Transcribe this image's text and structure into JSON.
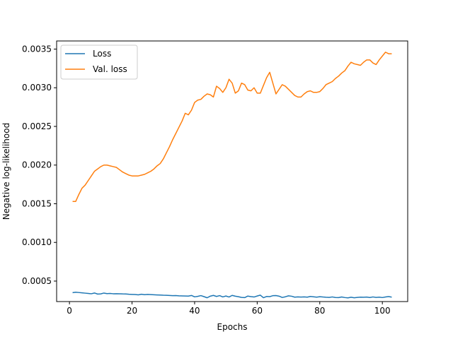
{
  "chart_data": {
    "type": "line",
    "title": "",
    "xlabel": "Epochs",
    "ylabel": "Negative log-likelihood",
    "xlim": [
      -4.1,
      108.1
    ],
    "ylim": [
      0.000235,
      0.003605
    ],
    "xticks": [
      0,
      20,
      40,
      60,
      80,
      100
    ],
    "xtick_labels": [
      "0",
      "20",
      "40",
      "60",
      "80",
      "100"
    ],
    "yticks": [
      0.0005,
      0.001,
      0.0015,
      0.002,
      0.0025,
      0.003,
      0.0035
    ],
    "ytick_labels": [
      "0.0005",
      "0.0010",
      "0.0015",
      "0.0020",
      "0.0025",
      "0.0030",
      "0.0035"
    ],
    "grid": false,
    "legend_position": "top-left",
    "series": [
      {
        "name": "Loss",
        "color": "#1f77b4",
        "x": [
          1,
          2,
          3,
          4,
          5,
          6,
          7,
          8,
          9,
          10,
          11,
          12,
          13,
          14,
          15,
          16,
          17,
          18,
          19,
          20,
          21,
          22,
          23,
          24,
          25,
          26,
          27,
          28,
          29,
          30,
          31,
          32,
          33,
          34,
          35,
          36,
          37,
          38,
          39,
          40,
          41,
          42,
          43,
          44,
          45,
          46,
          47,
          48,
          49,
          50,
          51,
          52,
          53,
          54,
          55,
          56,
          57,
          58,
          59,
          60,
          61,
          62,
          63,
          64,
          65,
          66,
          67,
          68,
          69,
          70,
          71,
          72,
          73,
          74,
          75,
          76,
          77,
          78,
          79,
          80,
          81,
          82,
          83,
          84,
          85,
          86,
          87,
          88,
          89,
          90,
          91,
          92,
          93,
          94,
          95,
          96,
          97,
          98,
          99,
          100,
          101,
          102,
          103
        ],
        "values": [
          0.00035,
          0.000356,
          0.000352,
          0.000348,
          0.000344,
          0.00034,
          0.000336,
          0.000346,
          0.000332,
          0.000334,
          0.000345,
          0.000338,
          0.00034,
          0.000336,
          0.000337,
          0.000336,
          0.000334,
          0.000333,
          0.00033,
          0.000328,
          0.000326,
          0.000322,
          0.00033,
          0.000324,
          0.000327,
          0.000325,
          0.000323,
          0.000321,
          0.000319,
          0.000317,
          0.000316,
          0.000314,
          0.000311,
          0.000313,
          0.000309,
          0.000308,
          0.000307,
          0.000306,
          0.000314,
          0.000296,
          0.000302,
          0.000312,
          0.000299,
          0.000284,
          0.000305,
          0.000315,
          0.000301,
          0.000312,
          0.000295,
          0.000307,
          0.000294,
          0.000315,
          0.000305,
          0.000298,
          0.000289,
          0.000286,
          0.000306,
          0.000299,
          0.000294,
          0.000307,
          0.000318,
          0.000285,
          0.000301,
          0.000299,
          0.000311,
          0.000313,
          0.000305,
          0.000288,
          0.000297,
          0.000309,
          0.000304,
          0.000292,
          0.000296,
          0.000293,
          0.000295,
          0.000292,
          0.000301,
          0.000297,
          0.000292,
          0.000298,
          0.000294,
          0.000291,
          0.000289,
          0.000295,
          0.000288,
          0.000286,
          0.000294,
          0.000287,
          0.000283,
          0.000291,
          0.000284,
          0.000289,
          0.000292,
          0.000291,
          0.000293,
          0.000288,
          0.000295,
          0.000289,
          0.000292,
          0.000287,
          0.000294,
          0.0003,
          0.000292
        ]
      },
      {
        "name": "Val. loss",
        "color": "#ff7f0e",
        "x": [
          1,
          2,
          3,
          4,
          5,
          6,
          7,
          8,
          9,
          10,
          11,
          12,
          13,
          14,
          15,
          16,
          17,
          18,
          19,
          20,
          21,
          22,
          23,
          24,
          25,
          26,
          27,
          28,
          29,
          30,
          31,
          32,
          33,
          34,
          35,
          36,
          37,
          38,
          39,
          40,
          41,
          42,
          43,
          44,
          45,
          46,
          47,
          48,
          49,
          50,
          51,
          52,
          53,
          54,
          55,
          56,
          57,
          58,
          59,
          60,
          61,
          62,
          63,
          64,
          65,
          66,
          67,
          68,
          69,
          70,
          71,
          72,
          73,
          74,
          75,
          76,
          77,
          78,
          79,
          80,
          81,
          82,
          83,
          84,
          85,
          86,
          87,
          88,
          89,
          90,
          91,
          92,
          93,
          94,
          95,
          96,
          97,
          98,
          99,
          100,
          101,
          102,
          103
        ],
        "values": [
          0.00153,
          0.00153,
          0.00162,
          0.0017,
          0.00174,
          0.0018,
          0.00186,
          0.00192,
          0.00195,
          0.00198,
          0.002,
          0.002,
          0.00199,
          0.00198,
          0.00197,
          0.00194,
          0.00191,
          0.00189,
          0.00187,
          0.00186,
          0.00186,
          0.00186,
          0.00187,
          0.00188,
          0.0019,
          0.00192,
          0.00195,
          0.00199,
          0.00202,
          0.00208,
          0.00216,
          0.00224,
          0.00233,
          0.00241,
          0.00249,
          0.00257,
          0.00267,
          0.00265,
          0.00271,
          0.00281,
          0.00284,
          0.00285,
          0.00289,
          0.00292,
          0.00291,
          0.00288,
          0.00302,
          0.00299,
          0.00294,
          0.003,
          0.00311,
          0.00306,
          0.00293,
          0.00296,
          0.00306,
          0.00304,
          0.00297,
          0.00296,
          0.003,
          0.00293,
          0.00293,
          0.00303,
          0.00313,
          0.0032,
          0.00306,
          0.00292,
          0.00298,
          0.00304,
          0.00302,
          0.00298,
          0.00294,
          0.0029,
          0.00288,
          0.00288,
          0.00292,
          0.00295,
          0.00296,
          0.00294,
          0.00294,
          0.00295,
          0.00299,
          0.00304,
          0.00306,
          0.00308,
          0.00312,
          0.00315,
          0.00319,
          0.00322,
          0.00328,
          0.00333,
          0.00331,
          0.0033,
          0.00329,
          0.00333,
          0.00336,
          0.00336,
          0.00332,
          0.0033,
          0.00336,
          0.00341,
          0.00346,
          0.00344,
          0.00344
        ]
      }
    ]
  }
}
